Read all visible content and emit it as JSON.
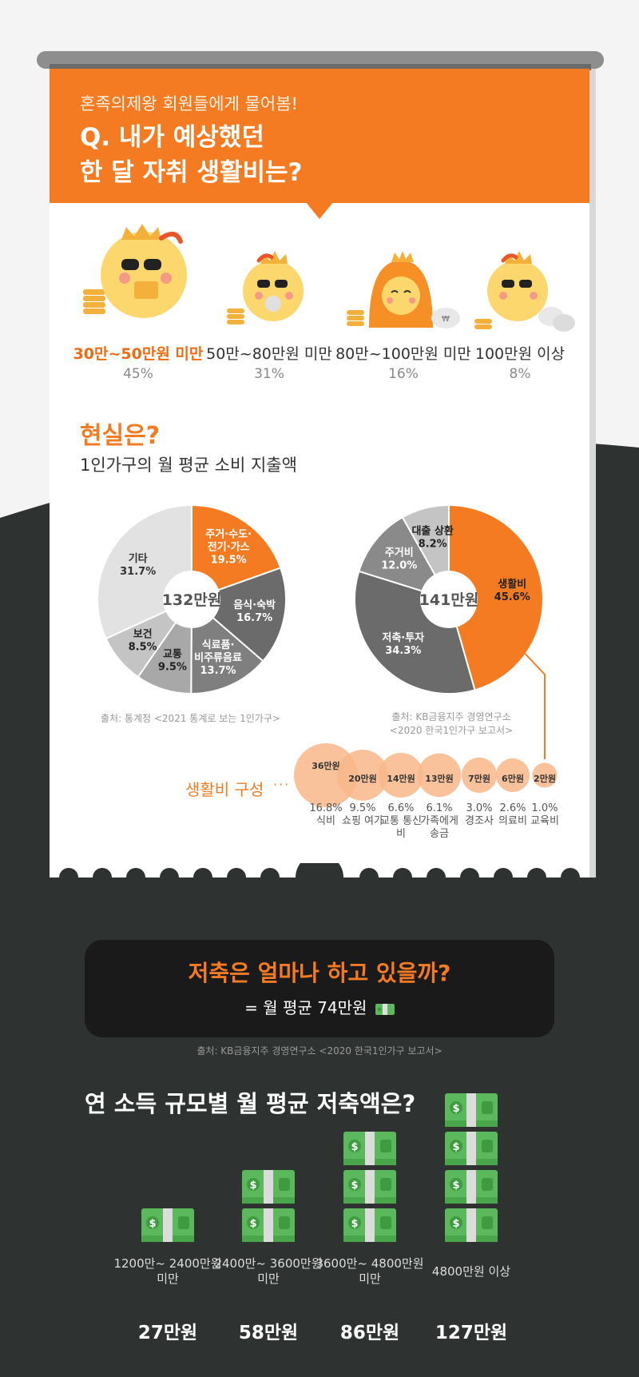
{
  "header": {
    "subtitle": "혼족의제왕 회원들에게 물어봄!",
    "title_line1": "Q. 내가 예상했던",
    "title_line2": "한 달 자취 생활비는?"
  },
  "expectations": [
    {
      "label": "30만~50만원 미만",
      "percent": "45%",
      "highlight": true
    },
    {
      "label": "50만~80만원 미만",
      "percent": "31%",
      "highlight": false
    },
    {
      "label": "80만~100만원 미만",
      "percent": "16%",
      "highlight": false
    },
    {
      "label": "100만원 이상",
      "percent": "8%",
      "highlight": false
    }
  ],
  "reality": {
    "title": "현실은?",
    "subtitle": "1인가구의 월 평균 소비 지출액"
  },
  "chart_data": [
    {
      "type": "pie",
      "center_label": "132만원",
      "slices": [
        {
          "label": "주거·수도·전기·가스",
          "value": 19.5,
          "text": "19.5%"
        },
        {
          "label": "음식·숙박",
          "value": 16.7,
          "text": "16.7%"
        },
        {
          "label": "식료품·비주류음료",
          "value": 13.7,
          "text": "13.7%"
        },
        {
          "label": "교통",
          "value": 9.5,
          "text": "9.5%"
        },
        {
          "label": "보건",
          "value": 8.5,
          "text": "8.5%"
        },
        {
          "label": "기타",
          "value": 31.7,
          "text": "31.7%"
        }
      ],
      "source": "출처: 통계청 <2021 통계로 보는 1인가구>"
    },
    {
      "type": "pie",
      "center_label": "141만원",
      "slices": [
        {
          "label": "생활비",
          "value": 45.6,
          "text": "45.6%"
        },
        {
          "label": "저축·투자",
          "value": 34.3,
          "text": "34.3%"
        },
        {
          "label": "주거비",
          "value": 12.0,
          "text": "12.0%"
        },
        {
          "label": "대출 상환",
          "value": 8.2,
          "text": "8.2%"
        }
      ],
      "source_line1": "출처: KB금융지주 경영연구소",
      "source_line2": "<2020 한국1인가구 보고서>"
    },
    {
      "type": "bubble",
      "title": "생활비 구성",
      "items": [
        {
          "amount": "36만원",
          "percent": "16.8%",
          "label": "식비",
          "value": 36
        },
        {
          "amount": "20만원",
          "percent": "9.5%",
          "label": "쇼핑 여가",
          "value": 20
        },
        {
          "amount": "14만원",
          "percent": "6.6%",
          "label": "교통 통신비",
          "value": 14
        },
        {
          "amount": "13만원",
          "percent": "6.1%",
          "label": "가족에게 송금",
          "value": 13
        },
        {
          "amount": "7만원",
          "percent": "3.0%",
          "label": "경조사",
          "value": 7
        },
        {
          "amount": "6만원",
          "percent": "2.6%",
          "label": "의료비",
          "value": 6
        },
        {
          "amount": "2만원",
          "percent": "1.0%",
          "label": "교육비",
          "value": 2
        }
      ]
    },
    {
      "type": "bar",
      "title": "연 소득 규모별 월 평균 저축액은?",
      "categories": [
        "1200만~ 2400만원 미만",
        "2400만~ 3600만원 미만",
        "3600만~ 4800만원 미만",
        "4800만원 이상"
      ],
      "values": [
        27,
        58,
        86,
        127
      ],
      "value_labels": [
        "27만원",
        "58만원",
        "86만원",
        "127만원"
      ],
      "bill_counts": [
        1,
        2,
        3,
        4
      ],
      "unit": "만원"
    }
  ],
  "savings": {
    "title": "저축은 얼마나 하고 있을까?",
    "subtitle": "= 월 평균 74만원",
    "source": "출처: KB금융지주 경영연구소 <2020 한국1인가구 보고서>"
  },
  "colors": {
    "orange": "#f57b22",
    "dark": "#2e3231",
    "bill_green": "#5cb85c",
    "peach": "#f8b78a"
  }
}
